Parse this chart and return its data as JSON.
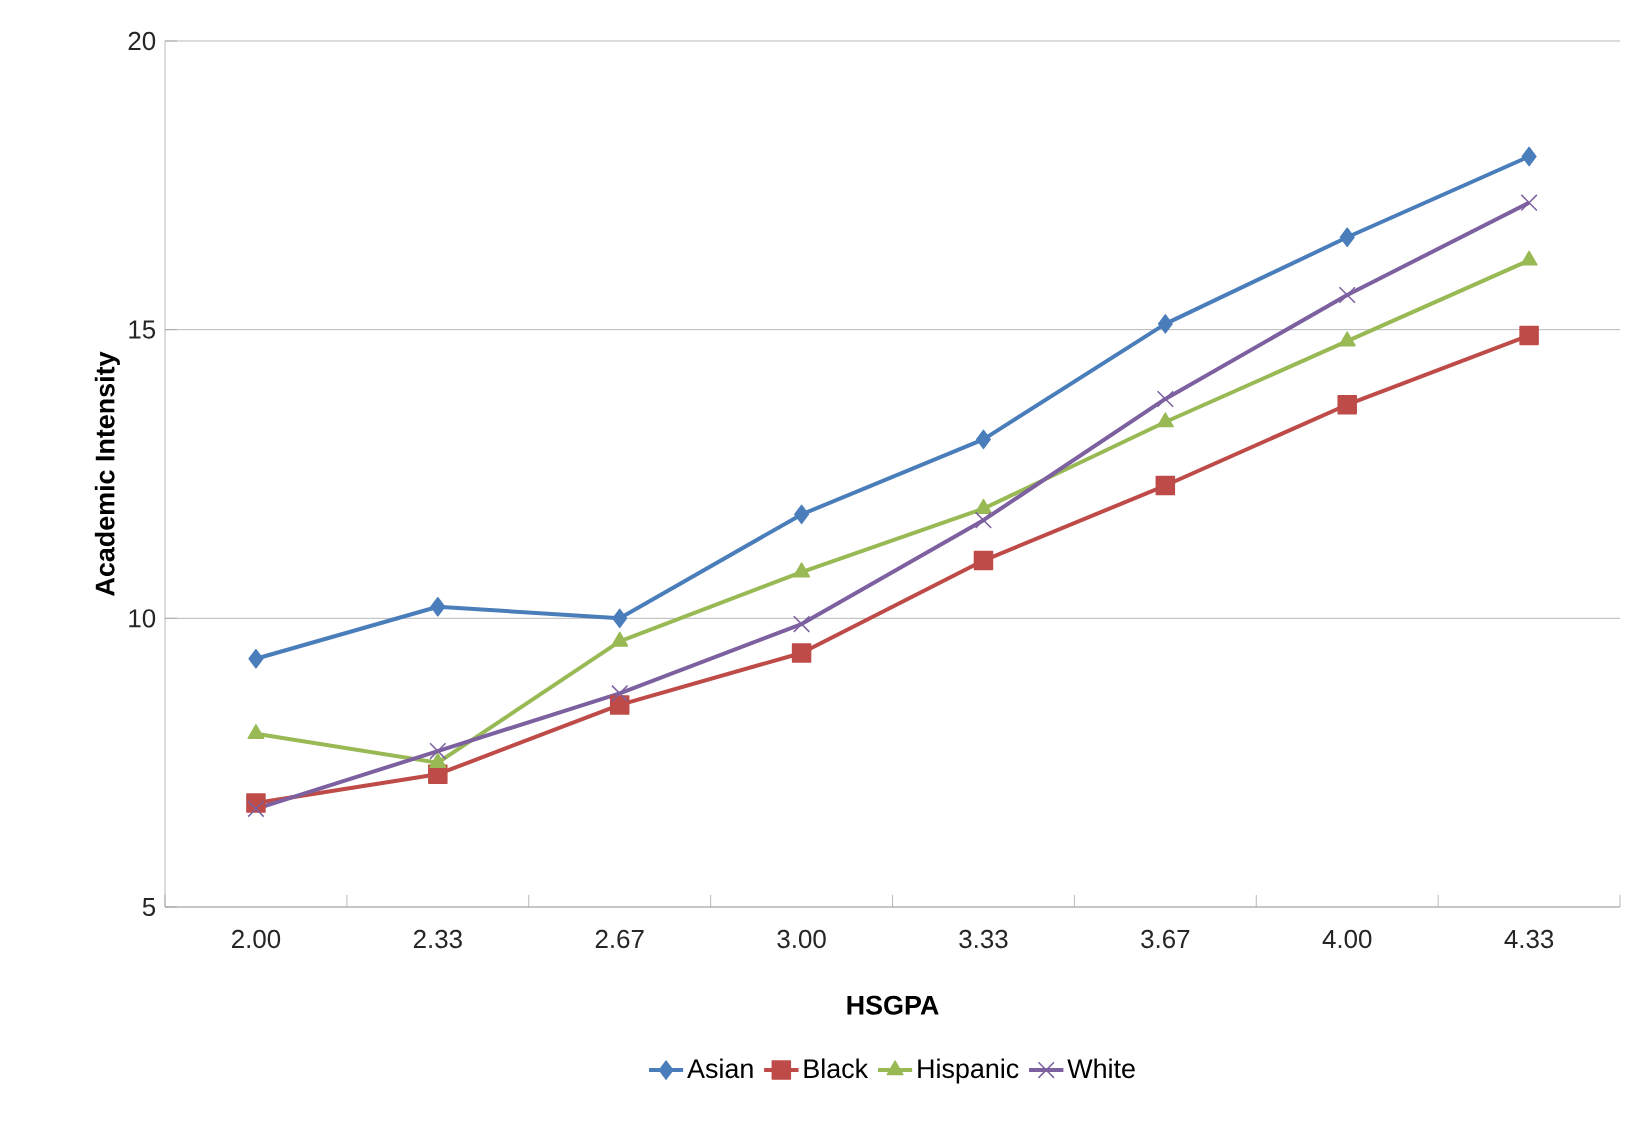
{
  "chart_data": {
    "type": "line",
    "xlabel": "HSGPA",
    "ylabel": "Academic Intensity",
    "categories": [
      "2.00",
      "2.33",
      "2.67",
      "3.00",
      "3.33",
      "3.67",
      "4.00",
      "4.33"
    ],
    "series": [
      {
        "name": "Asian",
        "color": "#4a7ebb",
        "marker": "diamond",
        "values": [
          9.3,
          10.2,
          10.0,
          11.8,
          13.1,
          15.1,
          16.6,
          18.0
        ]
      },
      {
        "name": "Black",
        "color": "#be4b48",
        "marker": "square",
        "values": [
          6.8,
          7.3,
          8.5,
          9.4,
          11.0,
          12.3,
          13.7,
          14.9
        ]
      },
      {
        "name": "Hispanic",
        "color": "#98b954",
        "marker": "triangle",
        "values": [
          8.0,
          7.5,
          9.6,
          10.8,
          11.9,
          13.4,
          14.8,
          16.2
        ]
      },
      {
        "name": "White",
        "color": "#7d60a0",
        "marker": "cross",
        "values": [
          6.7,
          7.7,
          8.7,
          9.9,
          11.7,
          13.8,
          15.6,
          17.2
        ]
      }
    ],
    "ylim": [
      5,
      20
    ],
    "yticks": [
      5,
      10,
      15,
      20
    ],
    "grid": "y",
    "legend": "bottom"
  }
}
